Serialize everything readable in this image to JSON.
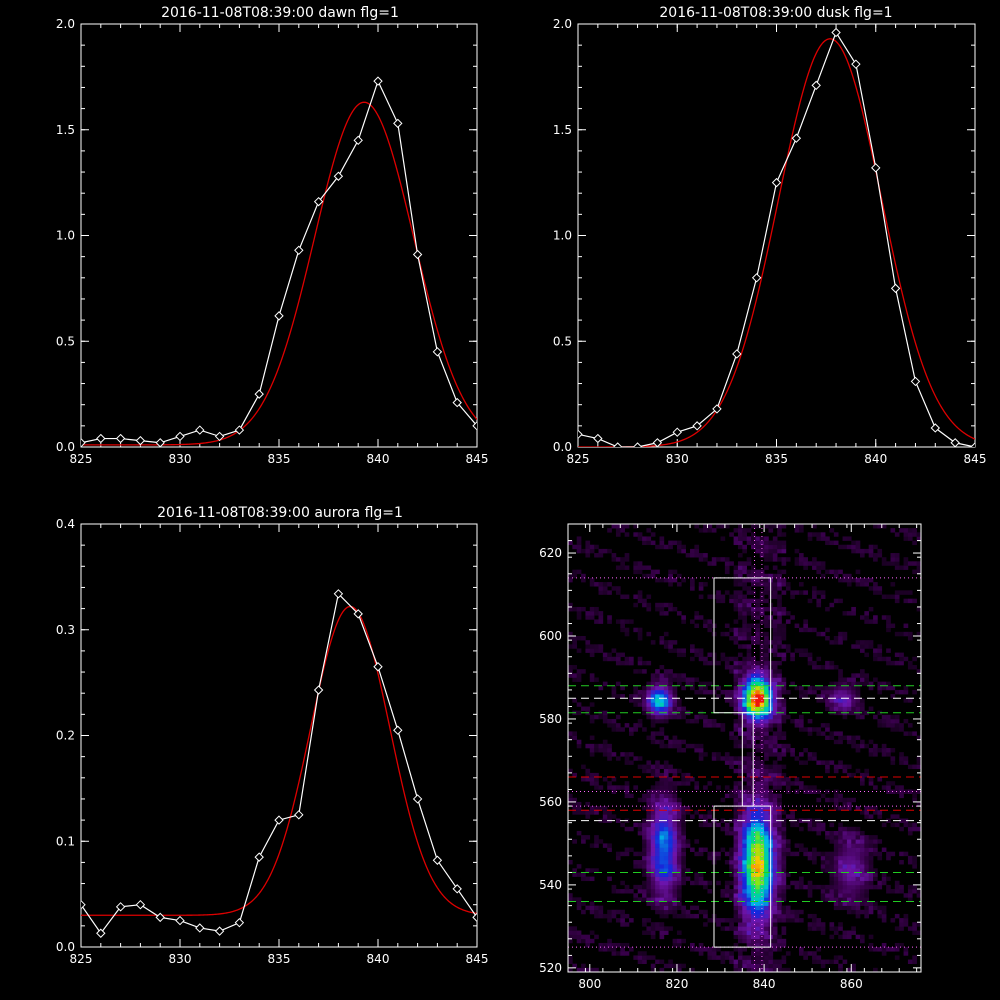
{
  "colors": {
    "background": "#000000",
    "axes": "#ffffff",
    "observed": "#ffffff",
    "fit": "#dd0000",
    "guide_white": "#ffffff",
    "guide_green": "#22cc22",
    "guide_red": "#dd0000",
    "guide_magenta": "#ff66ff"
  },
  "chart_data": [
    {
      "id": "dawn",
      "type": "line",
      "title": "2016-11-08T08:39:00 dawn flg=1",
      "xlim": [
        825,
        845
      ],
      "ylim": [
        0,
        2.0
      ],
      "xticks": [
        825,
        830,
        835,
        840,
        845
      ],
      "xtick_labels": [
        "825",
        "830",
        "835",
        "840",
        "845"
      ],
      "yticks": [
        0,
        0.5,
        1.0,
        1.5,
        2.0
      ],
      "ytick_labels": [
        "0.0",
        "0.5",
        "1.0",
        "1.5",
        "2.0"
      ],
      "series": [
        {
          "role": "observed",
          "marker": "diamond",
          "x": [
            825,
            826,
            827,
            828,
            829,
            830,
            831,
            832,
            833,
            834,
            835,
            836,
            837,
            838,
            839,
            840,
            841,
            842,
            843,
            844,
            845
          ],
          "y": [
            0.02,
            0.04,
            0.04,
            0.03,
            0.02,
            0.05,
            0.08,
            0.05,
            0.08,
            0.25,
            0.62,
            0.93,
            1.16,
            1.28,
            1.45,
            1.73,
            1.53,
            0.91,
            0.45,
            0.21,
            0.1
          ]
        },
        {
          "role": "fit",
          "model": "gaussian",
          "center": 839.3,
          "amplitude": 1.62,
          "sigma": 2.5,
          "baseline": 0.01
        }
      ]
    },
    {
      "id": "dusk",
      "type": "line",
      "title": "2016-11-08T08:39:00 dusk flg=1",
      "xlim": [
        825,
        845
      ],
      "ylim": [
        0,
        2.0
      ],
      "xticks": [
        825,
        830,
        835,
        840,
        845
      ],
      "xtick_labels": [
        "825",
        "830",
        "835",
        "840",
        "845"
      ],
      "yticks": [
        0,
        0.5,
        1.0,
        1.5,
        2.0
      ],
      "ytick_labels": [
        "0.0",
        "0.5",
        "1.0",
        "1.5",
        "2.0"
      ],
      "series": [
        {
          "role": "observed",
          "marker": "diamond",
          "x": [
            825,
            826,
            827,
            828,
            829,
            830,
            831,
            832,
            833,
            834,
            835,
            836,
            837,
            838,
            839,
            840,
            841,
            842,
            843,
            844,
            845
          ],
          "y": [
            0.06,
            0.04,
            0.0,
            0.0,
            0.02,
            0.07,
            0.1,
            0.18,
            0.44,
            0.8,
            1.25,
            1.46,
            1.71,
            1.96,
            1.81,
            1.32,
            0.75,
            0.31,
            0.09,
            0.02,
            0.0
          ]
        },
        {
          "role": "fit",
          "model": "gaussian",
          "center": 837.7,
          "amplitude": 1.93,
          "sigma": 2.6,
          "baseline": 0.0
        }
      ]
    },
    {
      "id": "aurora",
      "type": "line",
      "title": "2016-11-08T08:39:00 aurora flg=1",
      "xlim": [
        825,
        845
      ],
      "ylim": [
        0,
        0.4
      ],
      "xticks": [
        825,
        830,
        835,
        840,
        845
      ],
      "xtick_labels": [
        "825",
        "830",
        "835",
        "840",
        "845"
      ],
      "yticks": [
        0,
        0.1,
        0.2,
        0.3,
        0.4
      ],
      "ytick_labels": [
        "0.0",
        "0.1",
        "0.2",
        "0.3",
        "0.4"
      ],
      "series": [
        {
          "role": "observed",
          "marker": "diamond",
          "x": [
            825,
            826,
            827,
            828,
            829,
            830,
            831,
            832,
            833,
            834,
            835,
            836,
            837,
            838,
            839,
            840,
            841,
            842,
            843,
            844,
            845
          ],
          "y": [
            0.04,
            0.013,
            0.038,
            0.04,
            0.028,
            0.025,
            0.018,
            0.015,
            0.023,
            0.085,
            0.12,
            0.125,
            0.243,
            0.334,
            0.315,
            0.265,
            0.205,
            0.14,
            0.082,
            0.055,
            0.028
          ]
        },
        {
          "role": "fit",
          "model": "gaussian",
          "center": 838.6,
          "amplitude": 0.292,
          "sigma": 2.0,
          "baseline": 0.03
        }
      ]
    },
    {
      "id": "spectrogram",
      "type": "heatmap",
      "title": "",
      "xlim": [
        795,
        876
      ],
      "ylim": [
        519,
        627
      ],
      "xticks": [
        800,
        820,
        840,
        860
      ],
      "xtick_labels": [
        "800",
        "820",
        "840",
        "860"
      ],
      "yticks": [
        520,
        540,
        560,
        580,
        600,
        620
      ],
      "ytick_labels": [
        "520",
        "540",
        "560",
        "580",
        "600",
        "620"
      ],
      "colormap": "rainbow",
      "hot_spots": [
        {
          "x": 816,
          "y": 584.5,
          "sx": 2.0,
          "sy": 2.5,
          "peak": 0.55
        },
        {
          "x": 838.5,
          "y": 585,
          "sx": 2.3,
          "sy": 3.5,
          "peak": 1.0
        },
        {
          "x": 858,
          "y": 585,
          "sx": 2.5,
          "sy": 2.5,
          "peak": 0.22
        },
        {
          "x": 817,
          "y": 549,
          "sx": 2.3,
          "sy": 8.0,
          "peak": 0.45
        },
        {
          "x": 838.5,
          "y": 545,
          "sx": 2.5,
          "sy": 8.5,
          "peak": 0.85
        },
        {
          "x": 860,
          "y": 544,
          "sx": 3.0,
          "sy": 6.0,
          "peak": 0.2
        }
      ],
      "boxes": [
        {
          "x0": 828.5,
          "x1": 841.5,
          "y0": 581.5,
          "y1": 614
        },
        {
          "x0": 828.5,
          "x1": 841.5,
          "y0": 525,
          "y1": 559
        },
        {
          "x0": 835,
          "x1": 837.5,
          "y0": 559,
          "y1": 581.5
        }
      ],
      "hlines": [
        {
          "y": 614,
          "color": "magenta",
          "style": "dotted"
        },
        {
          "y": 588,
          "color": "green",
          "style": "dashed"
        },
        {
          "y": 585,
          "color": "white",
          "style": "dashed"
        },
        {
          "y": 581.5,
          "color": "green",
          "style": "dashed"
        },
        {
          "y": 566,
          "color": "red",
          "style": "dashed"
        },
        {
          "y": 562.5,
          "color": "magenta",
          "style": "dotted"
        },
        {
          "y": 559,
          "color": "magenta",
          "style": "dotted"
        },
        {
          "y": 558,
          "color": "red",
          "style": "dashed"
        },
        {
          "y": 555.5,
          "color": "white",
          "style": "dashed"
        },
        {
          "y": 543,
          "color": "green",
          "style": "dashed"
        },
        {
          "y": 536,
          "color": "green",
          "style": "dashed"
        },
        {
          "y": 525,
          "color": "magenta",
          "style": "dotted"
        }
      ],
      "vlines": [
        {
          "x": 837.8,
          "color": "magenta",
          "style": "dotted"
        },
        {
          "x": 839.5,
          "color": "magenta",
          "style": "dotted"
        }
      ]
    }
  ]
}
